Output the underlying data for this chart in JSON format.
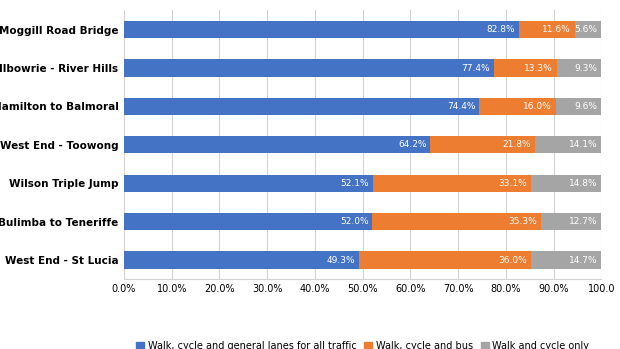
{
  "categories": [
    "West End - St Lucia",
    "Bulimba to Teneriffe",
    "Wilson Triple Jump",
    "West End - Toowong",
    "Hamilton to Balmoral",
    "Bellbowrie - River Hills",
    "Moggill Road Bridge"
  ],
  "walk_cycle_general": [
    49.3,
    52.0,
    52.1,
    64.2,
    74.4,
    77.4,
    82.8
  ],
  "walk_cycle_bus": [
    36.0,
    35.3,
    33.1,
    21.8,
    16.0,
    13.3,
    11.6
  ],
  "walk_cycle_only": [
    14.7,
    12.7,
    14.8,
    14.1,
    9.6,
    9.3,
    5.6
  ],
  "color_general": "#4472C4",
  "color_bus": "#ED7D31",
  "color_only": "#A5A5A5",
  "label_general": "Walk, cycle and general lanes for all traffic",
  "label_bus": "Walk, cycle and bus",
  "label_only": "Walk and cycle only",
  "xlim": [
    0,
    100
  ],
  "xtick_labels": [
    "0.0%",
    "10.0%",
    "20.0%",
    "30.0%",
    "40.0%",
    "50.0%",
    "60.0%",
    "70.0%",
    "80.0%",
    "90.0%",
    "100.0"
  ],
  "xtick_values": [
    0,
    10,
    20,
    30,
    40,
    50,
    60,
    70,
    80,
    90,
    100
  ],
  "background_color": "#ffffff",
  "grid_color": "#d3d3d3",
  "bar_height": 0.45,
  "label_fontsize": 6.5,
  "tick_fontsize": 7.0,
  "legend_fontsize": 7.0,
  "ytick_fontsize": 7.5
}
